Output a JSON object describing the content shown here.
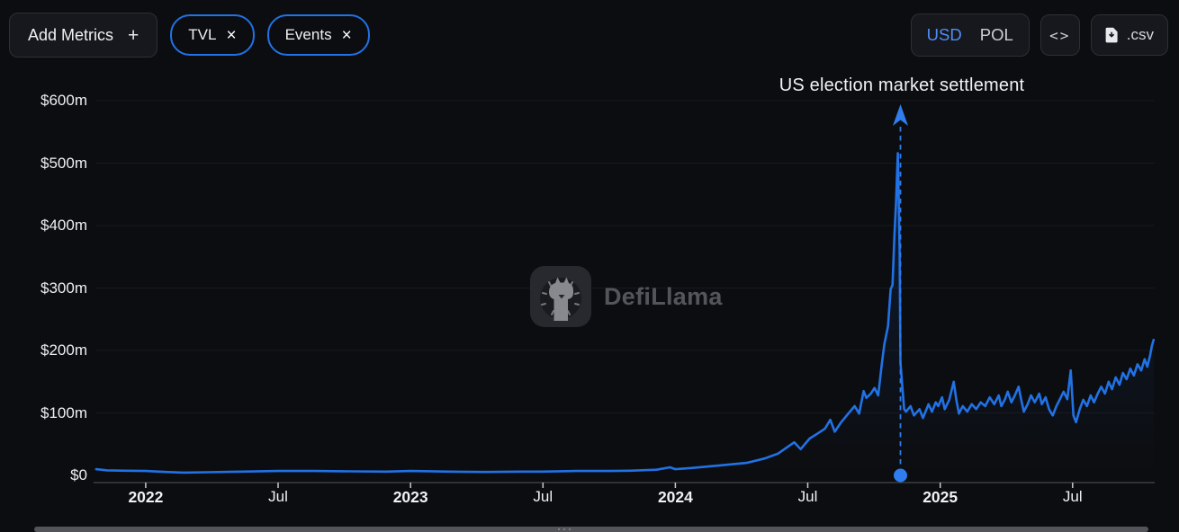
{
  "toolbar": {
    "add_metrics": {
      "label": "Add Metrics",
      "plus_icon": "+"
    },
    "metric_pills": [
      {
        "label": "TVL",
        "close_icon": "×"
      },
      {
        "label": "Events",
        "close_icon": "×"
      }
    ],
    "currency_toggle": {
      "options": [
        {
          "label": "USD",
          "active": true
        },
        {
          "label": "POL",
          "active": false
        }
      ],
      "active_color": "#4e8ef5"
    },
    "embed_button": {
      "icon": "<>"
    },
    "csv_button": {
      "label": ".csv",
      "icon": "file-download-icon"
    }
  },
  "watermark": {
    "text": "DefiLlama",
    "icon": "defillama-llama-logo"
  },
  "chart_data": {
    "type": "line",
    "title": "",
    "legend": "none",
    "grid": "faint-horizontal",
    "x_range": [
      2021.81,
      2025.81
    ],
    "y_range": [
      0,
      600
    ],
    "yticks": [
      {
        "value": 0,
        "label": "$0"
      },
      {
        "value": 100,
        "label": "$100m"
      },
      {
        "value": 200,
        "label": "$200m"
      },
      {
        "value": 300,
        "label": "$300m"
      },
      {
        "value": 400,
        "label": "$400m"
      },
      {
        "value": 500,
        "label": "$500m"
      },
      {
        "value": 600,
        "label": "$600m"
      }
    ],
    "xticks": [
      {
        "t": 2022.0,
        "label": "2022",
        "bold": true
      },
      {
        "t": 2022.5,
        "label": "Jul",
        "bold": false
      },
      {
        "t": 2023.0,
        "label": "2023",
        "bold": true
      },
      {
        "t": 2023.5,
        "label": "Jul",
        "bold": false
      },
      {
        "t": 2024.0,
        "label": "2024",
        "bold": true
      },
      {
        "t": 2024.5,
        "label": "Jul",
        "bold": false
      },
      {
        "t": 2025.0,
        "label": "2025",
        "bold": true
      },
      {
        "t": 2025.5,
        "label": "Jul",
        "bold": false
      }
    ],
    "annotation": {
      "label": "US election market settlement",
      "t": 2024.85,
      "style": "dashed-vertical-line-with-up-arrow-and-axis-dot",
      "color": "#2f7dee"
    },
    "series": [
      {
        "name": "TVL",
        "unit": "USD millions",
        "color": "#2172e5",
        "points": [
          [
            2021.813,
            10
          ],
          [
            2021.854,
            8
          ],
          [
            2021.92,
            7.5
          ],
          [
            2022.0,
            7
          ],
          [
            2022.075,
            5.5
          ],
          [
            2022.143,
            4.5
          ],
          [
            2022.228,
            5
          ],
          [
            2022.364,
            6
          ],
          [
            2022.5,
            7
          ],
          [
            2022.636,
            7
          ],
          [
            2022.772,
            6.5
          ],
          [
            2022.908,
            6
          ],
          [
            2023.0,
            7
          ],
          [
            2023.146,
            6
          ],
          [
            2023.282,
            5.5
          ],
          [
            2023.418,
            6
          ],
          [
            2023.493,
            6
          ],
          [
            2023.622,
            7
          ],
          [
            2023.759,
            7
          ],
          [
            2023.827,
            7.5
          ],
          [
            2023.929,
            9
          ],
          [
            2023.98,
            13
          ],
          [
            2024.0,
            10
          ],
          [
            2024.065,
            12
          ],
          [
            2024.167,
            16
          ],
          [
            2024.269,
            20
          ],
          [
            2024.337,
            27
          ],
          [
            2024.388,
            35
          ],
          [
            2024.422,
            45
          ],
          [
            2024.449,
            53
          ],
          [
            2024.473,
            42
          ],
          [
            2024.507,
            59
          ],
          [
            2024.541,
            68
          ],
          [
            2024.565,
            75
          ],
          [
            2024.585,
            89
          ],
          [
            2024.602,
            70
          ],
          [
            2024.626,
            85
          ],
          [
            2024.653,
            99
          ],
          [
            2024.677,
            111
          ],
          [
            2024.694,
            99
          ],
          [
            2024.711,
            135
          ],
          [
            2024.721,
            124
          ],
          [
            2024.738,
            131
          ],
          [
            2024.752,
            140
          ],
          [
            2024.766,
            128
          ],
          [
            2024.779,
            176
          ],
          [
            2024.789,
            210
          ],
          [
            2024.803,
            239
          ],
          [
            2024.813,
            298
          ],
          [
            2024.82,
            305
          ],
          [
            2024.827,
            384
          ],
          [
            2024.833,
            434
          ],
          [
            2024.84,
            516
          ],
          [
            2024.847,
            358
          ],
          [
            2024.85,
            181
          ],
          [
            2024.857,
            142
          ],
          [
            2024.864,
            106
          ],
          [
            2024.871,
            102
          ],
          [
            2024.888,
            111
          ],
          [
            2024.901,
            96
          ],
          [
            2024.922,
            106
          ],
          [
            2024.935,
            92
          ],
          [
            2024.956,
            114
          ],
          [
            2024.969,
            102
          ],
          [
            2024.983,
            117
          ],
          [
            2024.993,
            111
          ],
          [
            2025.007,
            125
          ],
          [
            2025.017,
            106
          ],
          [
            2025.034,
            121
          ],
          [
            2025.051,
            150
          ],
          [
            2025.061,
            121
          ],
          [
            2025.071,
            99
          ],
          [
            2025.085,
            111
          ],
          [
            2025.102,
            102
          ],
          [
            2025.119,
            114
          ],
          [
            2025.136,
            106
          ],
          [
            2025.153,
            117
          ],
          [
            2025.17,
            111
          ],
          [
            2025.187,
            125
          ],
          [
            2025.204,
            114
          ],
          [
            2025.221,
            128
          ],
          [
            2025.231,
            111
          ],
          [
            2025.245,
            122
          ],
          [
            2025.255,
            134
          ],
          [
            2025.269,
            117
          ],
          [
            2025.282,
            128
          ],
          [
            2025.296,
            142
          ],
          [
            2025.306,
            121
          ],
          [
            2025.316,
            102
          ],
          [
            2025.33,
            114
          ],
          [
            2025.343,
            128
          ],
          [
            2025.357,
            117
          ],
          [
            2025.374,
            131
          ],
          [
            2025.384,
            114
          ],
          [
            2025.398,
            125
          ],
          [
            2025.411,
            106
          ],
          [
            2025.425,
            96
          ],
          [
            2025.439,
            111
          ],
          [
            2025.452,
            122
          ],
          [
            2025.466,
            134
          ],
          [
            2025.48,
            122
          ],
          [
            2025.493,
            168
          ],
          [
            2025.503,
            96
          ],
          [
            2025.513,
            85
          ],
          [
            2025.527,
            106
          ],
          [
            2025.54,
            121
          ],
          [
            2025.554,
            111
          ],
          [
            2025.568,
            128
          ],
          [
            2025.581,
            117
          ],
          [
            2025.595,
            131
          ],
          [
            2025.608,
            142
          ],
          [
            2025.622,
            131
          ],
          [
            2025.636,
            150
          ],
          [
            2025.649,
            138
          ],
          [
            2025.663,
            157
          ],
          [
            2025.677,
            145
          ],
          [
            2025.69,
            164
          ],
          [
            2025.704,
            154
          ],
          [
            2025.718,
            171
          ],
          [
            2025.731,
            160
          ],
          [
            2025.745,
            178
          ],
          [
            2025.759,
            168
          ],
          [
            2025.772,
            186
          ],
          [
            2025.782,
            174
          ],
          [
            2025.793,
            193
          ],
          [
            2025.799,
            207
          ],
          [
            2025.806,
            217
          ]
        ]
      }
    ]
  }
}
